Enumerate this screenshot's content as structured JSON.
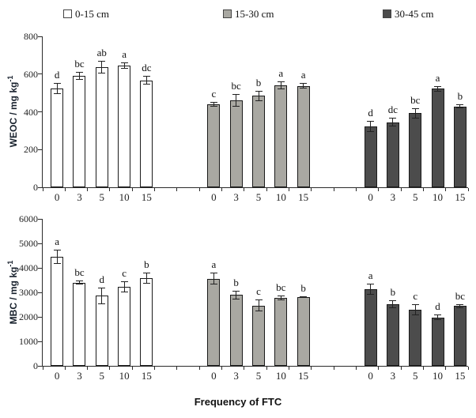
{
  "figure": {
    "xlabel": "Frequency of FTC"
  },
  "legend": [
    {
      "label": "0-15 cm",
      "color": "#FFFFFF"
    },
    {
      "label": "15-30 cm",
      "color": "#A9A8A2"
    },
    {
      "label": "30-45 cm",
      "color": "#4C4C4C"
    }
  ],
  "chart_data": [
    {
      "type": "bar",
      "title": "WEOC",
      "ylabel": "WEOC / mg kg",
      "ylabel_sup": "-1",
      "xlabel": "Frequency of FTC",
      "ylim": [
        0,
        800
      ],
      "ytick_step": 200,
      "grid": false,
      "legend_position": "top",
      "categories": [
        "0",
        "3",
        "5",
        "10",
        "15"
      ],
      "series": [
        {
          "name": "0-15 cm",
          "color": "#FFFFFF",
          "values": [
            525,
            590,
            638,
            645,
            567
          ],
          "errors": [
            30,
            22,
            33,
            18,
            22
          ],
          "letters": [
            "d",
            "bc",
            "ab",
            "a",
            "dc"
          ]
        },
        {
          "name": "15-30 cm",
          "color": "#A9A8A2",
          "values": [
            440,
            462,
            485,
            540,
            538
          ],
          "errors": [
            14,
            34,
            28,
            20,
            14
          ],
          "letters": [
            "c",
            "bc",
            "b",
            "a",
            "a"
          ]
        },
        {
          "name": "30-45 cm",
          "color": "#4C4C4C",
          "values": [
            322,
            345,
            392,
            522,
            428
          ],
          "errors": [
            28,
            24,
            28,
            16,
            10
          ],
          "letters": [
            "d",
            "dc",
            "bc",
            "a",
            "b"
          ]
        }
      ]
    },
    {
      "type": "bar",
      "title": "MBC",
      "ylabel": "MBC / mg kg",
      "ylabel_sup": "-1",
      "xlabel": "Frequency of FTC",
      "ylim": [
        0,
        6000
      ],
      "ytick_step": 1000,
      "grid": false,
      "legend_position": "top",
      "categories": [
        "0",
        "3",
        "5",
        "10",
        "15"
      ],
      "series": [
        {
          "name": "0-15 cm",
          "color": "#FFFFFF",
          "values": [
            4440,
            3390,
            2860,
            3220,
            3590
          ],
          "errors": [
            290,
            80,
            350,
            230,
            230
          ],
          "letters": [
            "a",
            "bc",
            "d",
            "c",
            "b"
          ]
        },
        {
          "name": "15-30 cm",
          "color": "#A9A8A2",
          "values": [
            3560,
            2890,
            2460,
            2780,
            2800
          ],
          "errors": [
            250,
            180,
            240,
            100,
            40
          ],
          "letters": [
            "a",
            "b",
            "c",
            "bc",
            "b"
          ]
        },
        {
          "name": "30-45 cm",
          "color": "#4C4C4C",
          "values": [
            3130,
            2530,
            2300,
            1980,
            2440
          ],
          "errors": [
            240,
            160,
            230,
            120,
            80
          ],
          "letters": [
            "a",
            "b",
            "c",
            "d",
            "bc"
          ]
        }
      ]
    }
  ]
}
